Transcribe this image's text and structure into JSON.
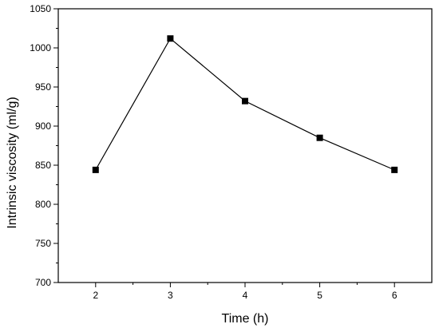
{
  "chart_data": {
    "type": "line",
    "title": "",
    "xlabel": "Time (h)",
    "ylabel": "Intrinsic viscosity (ml/g)",
    "xlim": [
      1.5,
      6.5
    ],
    "ylim": [
      700,
      1050
    ],
    "x_ticks": [
      2,
      3,
      4,
      5,
      6
    ],
    "y_ticks": [
      700,
      750,
      800,
      850,
      900,
      950,
      1000,
      1050
    ],
    "grid": false,
    "legend": "none",
    "series": [
      {
        "marker": "square",
        "color": "#000000",
        "x": [
          2,
          3,
          4,
          5,
          6
        ],
        "y": [
          844,
          1012,
          932,
          885,
          844
        ]
      }
    ]
  }
}
